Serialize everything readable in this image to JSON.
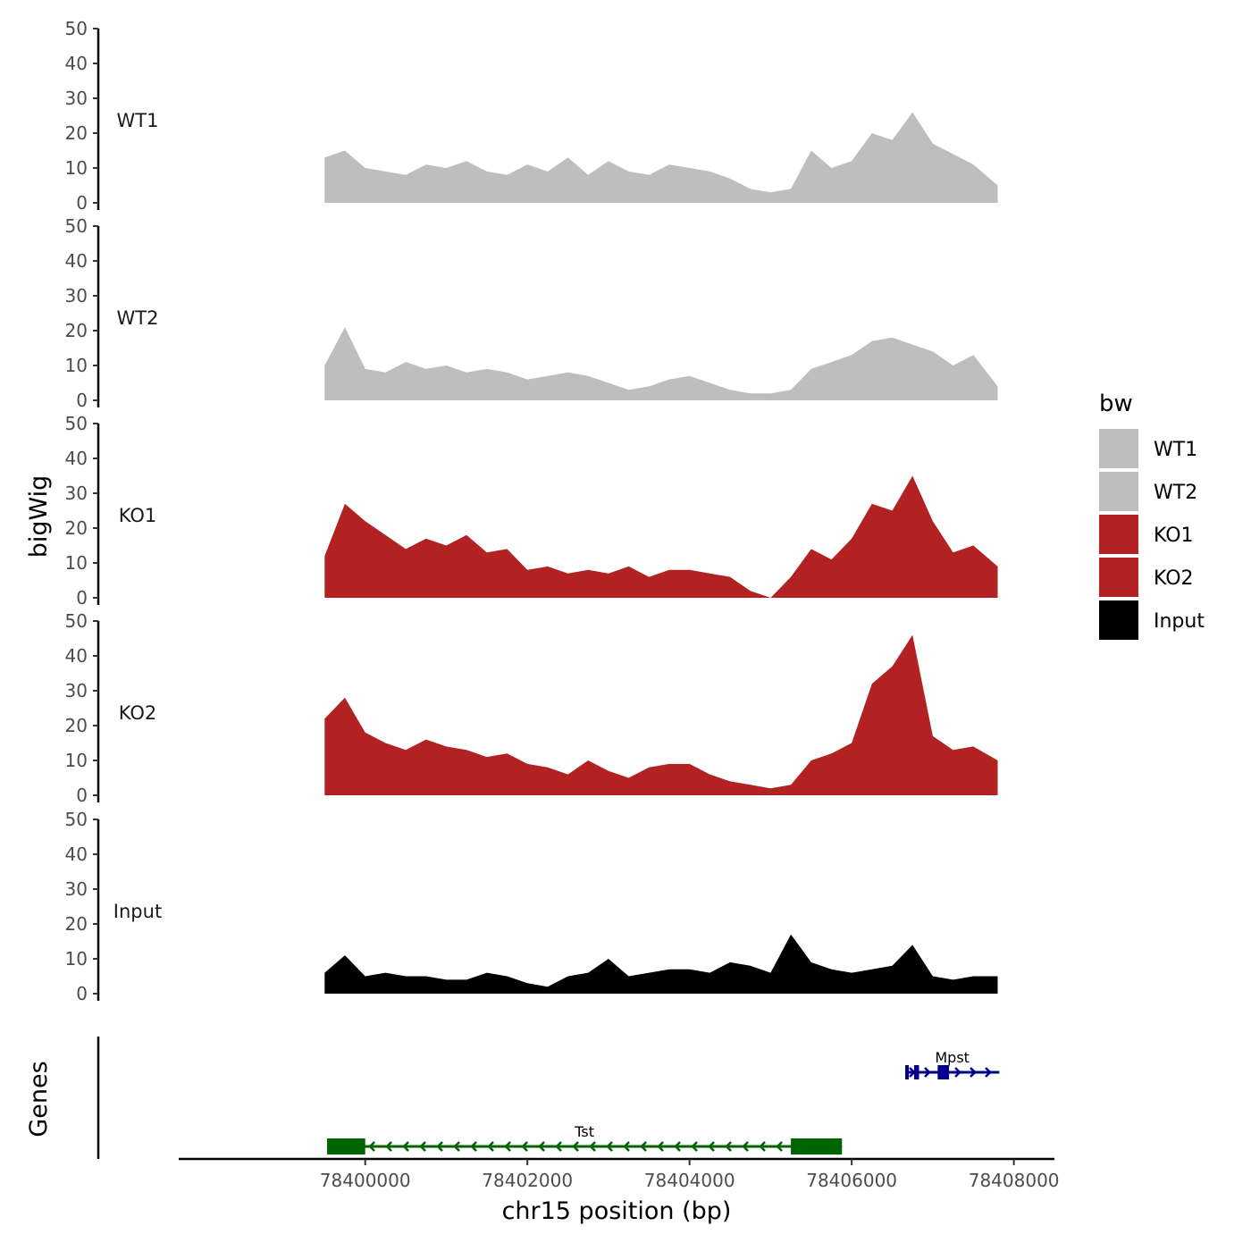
{
  "chart_data": {
    "type": "area",
    "title": "",
    "xlabel": "chr15 position (bp)",
    "ylabel": "bigWig",
    "genes_panel_label": "Genes",
    "xlim": [
      78397700,
      78408500
    ],
    "x_ticks": [
      78400000,
      78402000,
      78404000,
      78406000,
      78408000
    ],
    "x_tick_labels": [
      "78400000",
      "78402000",
      "78404000",
      "78406000",
      "78408000"
    ],
    "ylim": [
      0,
      50
    ],
    "y_ticks": [
      0,
      10,
      20,
      30,
      40,
      50
    ],
    "y_tick_labels": [
      "0",
      "10",
      "20",
      "30",
      "40",
      "50"
    ],
    "x": [
      78399500,
      78399750,
      78400000,
      78400250,
      78400500,
      78400750,
      78401000,
      78401250,
      78401500,
      78401750,
      78402000,
      78402250,
      78402500,
      78402750,
      78403000,
      78403250,
      78403500,
      78403750,
      78404000,
      78404250,
      78404500,
      78404750,
      78405000,
      78405250,
      78405500,
      78405750,
      78406000,
      78406250,
      78406500,
      78406750,
      78407000,
      78407250,
      78407500,
      78407800
    ],
    "series": [
      {
        "name": "WT1",
        "color": "#BEBEBE",
        "values": [
          13,
          15,
          10,
          9,
          8,
          11,
          10,
          12,
          9,
          8,
          11,
          9,
          13,
          8,
          12,
          9,
          8,
          11,
          10,
          9,
          7,
          4,
          3,
          4,
          15,
          10,
          12,
          20,
          18,
          26,
          17,
          14,
          11,
          5
        ]
      },
      {
        "name": "WT2",
        "color": "#BEBEBE",
        "values": [
          10,
          21,
          9,
          8,
          11,
          9,
          10,
          8,
          9,
          8,
          6,
          7,
          8,
          7,
          5,
          3,
          4,
          6,
          7,
          5,
          3,
          2,
          2,
          3,
          9,
          11,
          13,
          17,
          18,
          16,
          14,
          10,
          13,
          4
        ]
      },
      {
        "name": "KO1",
        "color": "#B22222",
        "values": [
          12,
          27,
          22,
          18,
          14,
          17,
          15,
          18,
          13,
          14,
          8,
          9,
          7,
          8,
          7,
          9,
          6,
          8,
          8,
          7,
          6,
          2,
          0,
          6,
          14,
          11,
          17,
          27,
          25,
          35,
          22,
          13,
          15,
          9
        ]
      },
      {
        "name": "KO2",
        "color": "#B22222",
        "values": [
          22,
          28,
          18,
          15,
          13,
          16,
          14,
          13,
          11,
          12,
          9,
          8,
          6,
          10,
          7,
          5,
          8,
          9,
          9,
          6,
          4,
          3,
          2,
          3,
          10,
          12,
          15,
          32,
          37,
          46,
          17,
          13,
          14,
          10
        ]
      },
      {
        "name": "Input",
        "color": "#000000",
        "values": [
          6,
          11,
          5,
          6,
          5,
          5,
          4,
          4,
          6,
          5,
          3,
          2,
          5,
          6,
          10,
          5,
          6,
          7,
          7,
          6,
          9,
          8,
          6,
          17,
          9,
          7,
          6,
          7,
          8,
          14,
          5,
          4,
          5,
          5
        ]
      }
    ],
    "legend": {
      "title": "bw",
      "position": "right",
      "entries": [
        {
          "label": "WT1",
          "color": "#BEBEBE"
        },
        {
          "label": "WT2",
          "color": "#BEBEBE"
        },
        {
          "label": "KO1",
          "color": "#B22222"
        },
        {
          "label": "KO2",
          "color": "#B22222"
        },
        {
          "label": "Input",
          "color": "#000000"
        }
      ]
    },
    "genes": [
      {
        "name": "Tst",
        "strand": "-",
        "start": 78399530,
        "end": 78405880,
        "color": "#006400",
        "exons": [
          [
            78399530,
            78400000
          ],
          [
            78405250,
            78405880
          ]
        ]
      },
      {
        "name": "Mpst",
        "strand": "+",
        "start": 78406660,
        "end": 78407820,
        "color": "#00008B",
        "exons": [
          [
            78406660,
            78406700
          ],
          [
            78406770,
            78406830
          ],
          [
            78407060,
            78407200
          ]
        ]
      }
    ]
  }
}
